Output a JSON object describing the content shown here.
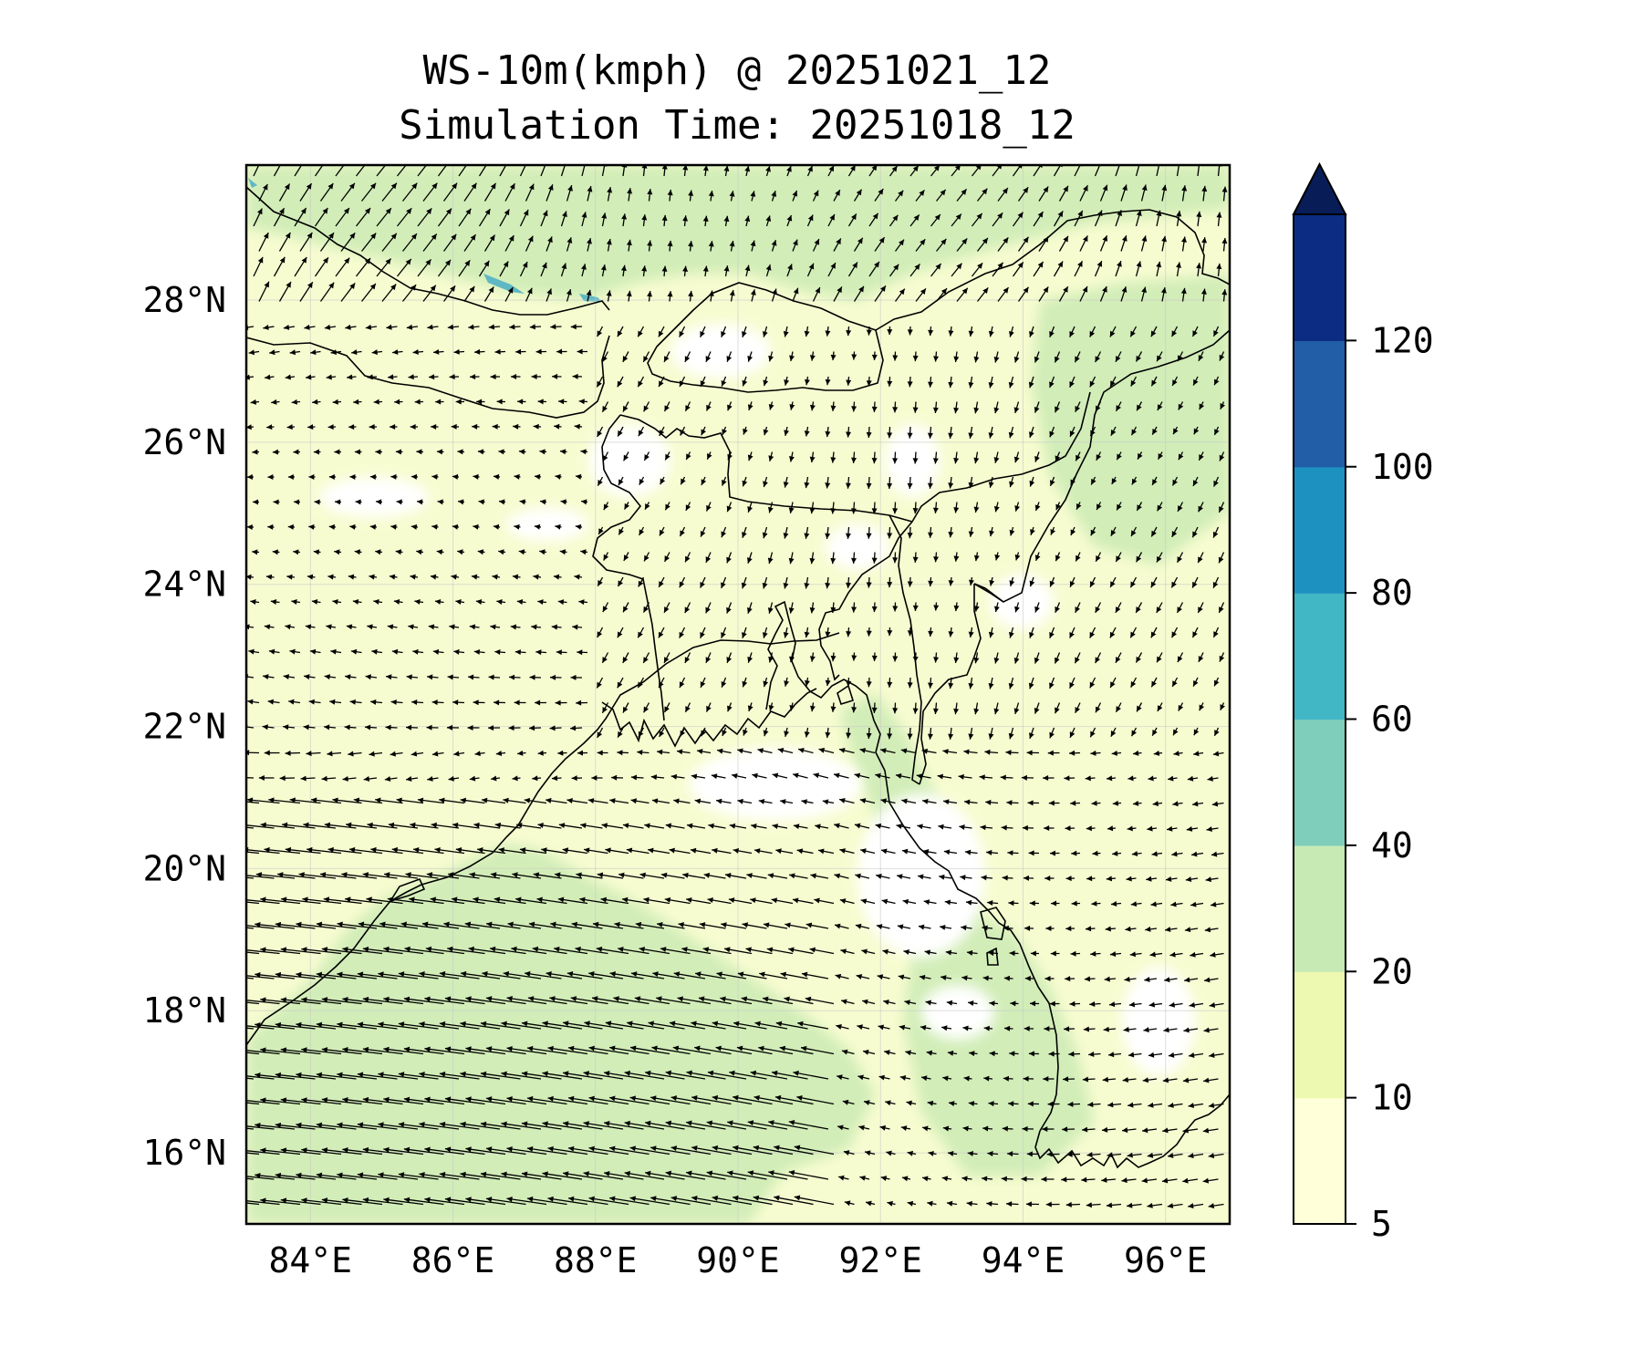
{
  "title_line1": "WS-10m(kmph) @ 20251021_12",
  "title_line2": "Simulation Time: 20251018_12",
  "map": {
    "lon_range": [
      83.1,
      96.9
    ],
    "lat_range": [
      15.0,
      29.9
    ],
    "lon_ticks": [
      "84°E",
      "86°E",
      "88°E",
      "90°E",
      "92°E",
      "94°E",
      "96°E"
    ],
    "lon_values": [
      84,
      86,
      88,
      90,
      92,
      94,
      96
    ],
    "lat_ticks": [
      "16°N",
      "18°N",
      "20°N",
      "22°N",
      "24°N",
      "26°N",
      "28°N"
    ],
    "lat_values": [
      16,
      18,
      20,
      22,
      24,
      26,
      28
    ],
    "gridlines": true
  },
  "colorbar": {
    "levels": [
      5,
      10,
      20,
      40,
      60,
      80,
      100,
      120
    ],
    "tick_labels": [
      "5",
      "10",
      "20",
      "40",
      "60",
      "80",
      "100",
      "120"
    ],
    "colors": [
      "#ffffd9",
      "#edf8b1",
      "#c7e9b4",
      "#7fcdbb",
      "#41b6c4",
      "#1d91c0",
      "#225ea8",
      "#0c2c84"
    ],
    "extend": "max",
    "extend_color": "#081d58"
  },
  "colors": {
    "land_low": "#f7fcd0",
    "sea_medium": "#d2edb8",
    "calm": "#ffffff",
    "lake": "#5fb8c4",
    "coastline": "#000000",
    "arrow": "#000000"
  }
}
